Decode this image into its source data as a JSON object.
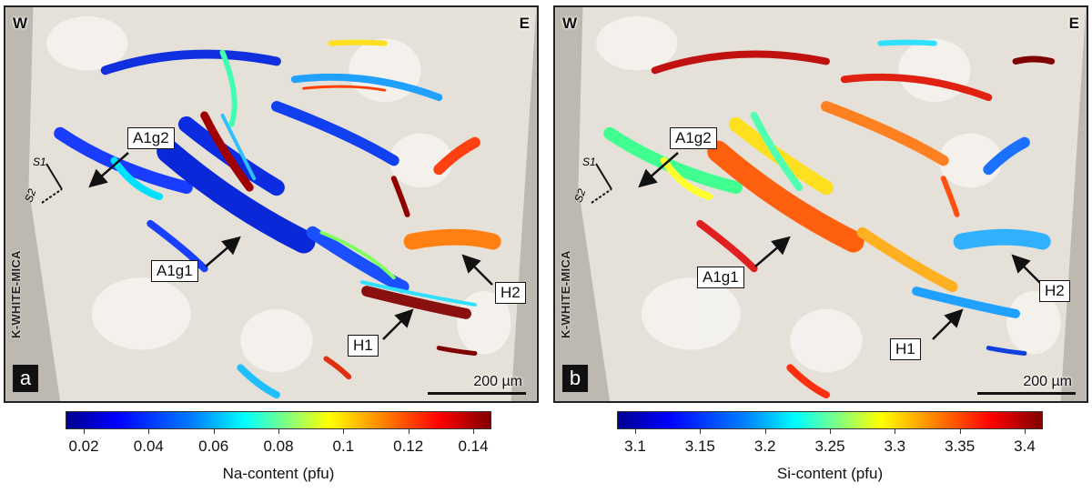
{
  "panels": [
    {
      "letter": "a",
      "west": "W",
      "east": "E",
      "side_label": "K-WHITE-MICA",
      "s1": "S1",
      "s2": "S2",
      "scale": "200 µm",
      "callouts": {
        "a1g2": "A1g2",
        "a1g1": "A1g1",
        "h1": "H1",
        "h2": "H2"
      },
      "colorbar": {
        "title": "Na-content (pfu)",
        "ticks": [
          "0.02",
          "0.04",
          "0.06",
          "0.08",
          "0.1",
          "0.12",
          "0.14"
        ]
      }
    },
    {
      "letter": "b",
      "west": "W",
      "east": "E",
      "side_label": "K-WHITE-MICA",
      "s1": "S1",
      "s2": "S2",
      "scale": "200 µm",
      "callouts": {
        "a1g2": "A1g2",
        "a1g1": "A1g1",
        "h1": "H1",
        "h2": "H2"
      },
      "colorbar": {
        "title": "Si-content (pfu)",
        "ticks": [
          "3.1",
          "3.15",
          "3.2",
          "3.25",
          "3.3",
          "3.35",
          "3.4"
        ]
      }
    }
  ],
  "colormap": "jet"
}
